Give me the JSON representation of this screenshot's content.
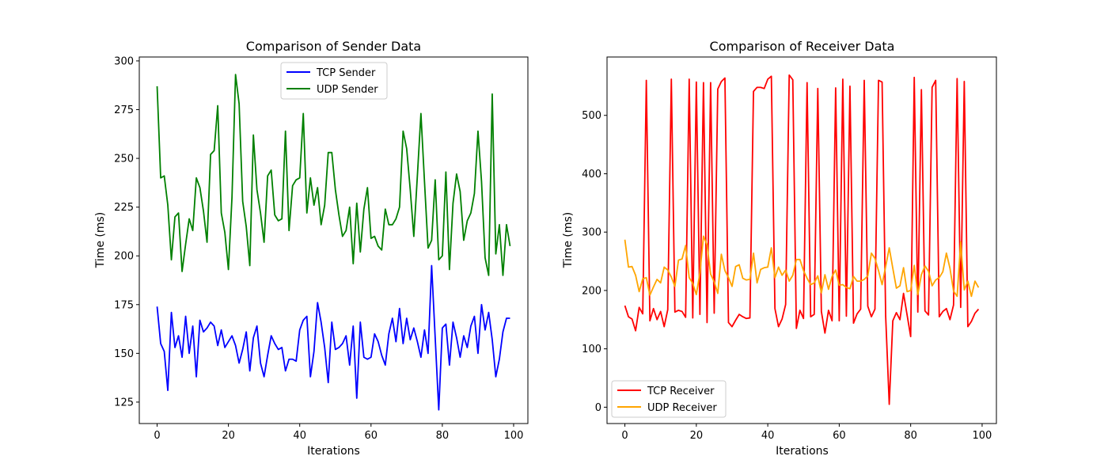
{
  "chart_data": [
    {
      "type": "line",
      "title": "Comparison of Sender Data",
      "xlabel": "Iterations",
      "ylabel": "Time (ms)",
      "xlim": [
        -5,
        104
      ],
      "ylim": [
        114,
        302
      ],
      "xticks": [
        0,
        20,
        40,
        60,
        80,
        100
      ],
      "yticks": [
        125,
        150,
        175,
        200,
        225,
        250,
        275,
        300
      ],
      "grid": false,
      "legend": "upper-center",
      "x": [
        0,
        1,
        2,
        3,
        4,
        5,
        6,
        7,
        8,
        9,
        10,
        11,
        12,
        13,
        14,
        15,
        16,
        17,
        18,
        19,
        20,
        21,
        22,
        23,
        24,
        25,
        26,
        27,
        28,
        29,
        30,
        31,
        32,
        33,
        34,
        35,
        36,
        37,
        38,
        39,
        40,
        41,
        42,
        43,
        44,
        45,
        46,
        47,
        48,
        49,
        50,
        51,
        52,
        53,
        54,
        55,
        56,
        57,
        58,
        59,
        60,
        61,
        62,
        63,
        64,
        65,
        66,
        67,
        68,
        69,
        70,
        71,
        72,
        73,
        74,
        75,
        76,
        77,
        78,
        79,
        80,
        81,
        82,
        83,
        84,
        85,
        86,
        87,
        88,
        89,
        90,
        91,
        92,
        93,
        94,
        95,
        96,
        97,
        98,
        99
      ],
      "series": [
        {
          "name": "TCP Sender",
          "color": "#0000ff",
          "values": [
            174,
            155,
            151,
            131,
            171,
            153,
            159,
            148,
            169,
            150,
            164,
            138,
            167,
            161,
            163,
            166,
            164,
            154,
            162,
            153,
            156,
            159,
            154,
            145,
            152,
            161,
            141,
            158,
            164,
            145,
            138,
            149,
            159,
            155,
            152,
            153,
            141,
            147,
            147,
            146,
            162,
            167,
            169,
            138,
            151,
            176,
            166,
            153,
            135,
            166,
            152,
            153,
            155,
            159,
            144,
            164,
            127,
            166,
            148,
            147,
            148,
            160,
            156,
            149,
            144,
            160,
            168,
            156,
            173,
            155,
            168,
            157,
            163,
            156,
            148,
            162,
            150,
            195,
            158,
            121,
            163,
            165,
            144,
            166,
            158,
            148,
            159,
            153,
            164,
            169,
            150,
            175,
            162,
            171,
            157,
            138,
            147,
            161,
            168,
            168
          ]
        },
        {
          "name": "UDP Sender",
          "color": "#008000",
          "values": [
            287,
            240,
            241,
            226,
            198,
            220,
            222,
            192,
            206,
            219,
            213,
            240,
            235,
            223,
            207,
            252,
            254,
            277,
            222,
            212,
            193,
            230,
            293,
            278,
            228,
            215,
            195,
            262,
            234,
            222,
            207,
            241,
            244,
            221,
            218,
            219,
            264,
            213,
            236,
            239,
            240,
            273,
            222,
            240,
            226,
            235,
            216,
            226,
            253,
            253,
            234,
            221,
            210,
            213,
            225,
            196,
            227,
            202,
            224,
            235,
            209,
            210,
            205,
            203,
            224,
            216,
            216,
            219,
            225,
            264,
            255,
            234,
            210,
            241,
            273,
            238,
            204,
            208,
            239,
            198,
            200,
            243,
            193,
            227,
            242,
            233,
            208,
            218,
            222,
            232,
            264,
            238,
            199,
            190,
            283,
            201,
            216,
            190,
            216,
            205
          ]
        }
      ]
    },
    {
      "type": "line",
      "title": "Comparison of Receiver Data",
      "xlabel": "Iterations",
      "ylabel": "Time (ms)",
      "xlim": [
        -5,
        104
      ],
      "ylim": [
        -28,
        600
      ],
      "xticks": [
        0,
        20,
        40,
        60,
        80,
        100
      ],
      "yticks": [
        0,
        100,
        200,
        300,
        400,
        500
      ],
      "grid": false,
      "legend": "lower-left",
      "x": [
        0,
        1,
        2,
        3,
        4,
        5,
        6,
        7,
        8,
        9,
        10,
        11,
        12,
        13,
        14,
        15,
        16,
        17,
        18,
        19,
        20,
        21,
        22,
        23,
        24,
        25,
        26,
        27,
        28,
        29,
        30,
        31,
        32,
        33,
        34,
        35,
        36,
        37,
        38,
        39,
        40,
        41,
        42,
        43,
        44,
        45,
        46,
        47,
        48,
        49,
        50,
        51,
        52,
        53,
        54,
        55,
        56,
        57,
        58,
        59,
        60,
        61,
        62,
        63,
        64,
        65,
        66,
        67,
        68,
        69,
        70,
        71,
        72,
        73,
        74,
        75,
        76,
        77,
        78,
        79,
        80,
        81,
        82,
        83,
        84,
        85,
        86,
        87,
        88,
        89,
        90,
        91,
        92,
        93,
        94,
        95,
        96,
        97,
        98,
        99
      ],
      "series": [
        {
          "name": "TCP Receiver",
          "color": "#ff0000",
          "values": [
            174,
            155,
            151,
            131,
            171,
            160,
            560,
            148,
            169,
            150,
            164,
            138,
            167,
            562,
            163,
            166,
            164,
            154,
            562,
            153,
            557,
            159,
            556,
            145,
            556,
            161,
            545,
            558,
            564,
            145,
            138,
            149,
            159,
            155,
            152,
            153,
            541,
            548,
            548,
            546,
            562,
            567,
            169,
            138,
            151,
            176,
            569,
            561,
            135,
            166,
            152,
            556,
            155,
            159,
            546,
            164,
            127,
            166,
            148,
            547,
            148,
            562,
            156,
            550,
            144,
            160,
            168,
            560,
            173,
            155,
            168,
            560,
            557,
            156,
            5,
            148,
            162,
            150,
            195,
            158,
            121,
            565,
            163,
            544,
            165,
            158,
            548,
            560,
            155,
            164,
            169,
            150,
            175,
            563,
            171,
            558,
            138,
            147,
            161,
            168
          ]
        },
        {
          "name": "UDP Receiver",
          "color": "#ffa500",
          "values": [
            287,
            240,
            241,
            226,
            198,
            220,
            222,
            192,
            206,
            219,
            213,
            240,
            235,
            223,
            207,
            252,
            254,
            277,
            222,
            212,
            193,
            230,
            293,
            278,
            228,
            215,
            195,
            262,
            234,
            222,
            207,
            241,
            244,
            221,
            218,
            219,
            264,
            213,
            236,
            239,
            240,
            273,
            222,
            240,
            226,
            235,
            216,
            226,
            253,
            253,
            234,
            221,
            210,
            213,
            225,
            196,
            227,
            202,
            224,
            235,
            209,
            210,
            205,
            203,
            224,
            216,
            216,
            219,
            225,
            264,
            255,
            234,
            210,
            241,
            273,
            238,
            204,
            208,
            239,
            198,
            200,
            243,
            193,
            227,
            242,
            233,
            208,
            218,
            222,
            232,
            264,
            238,
            199,
            190,
            283,
            201,
            216,
            190,
            216,
            205
          ]
        }
      ]
    }
  ]
}
